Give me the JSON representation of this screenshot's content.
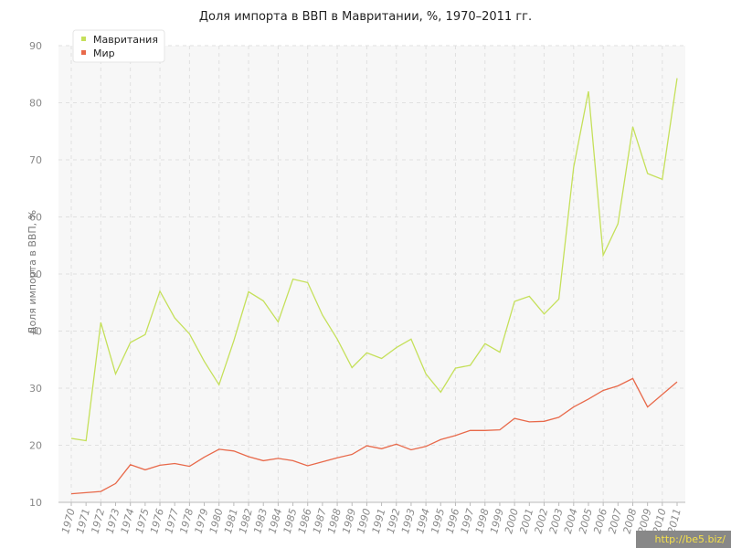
{
  "chart_data": {
    "type": "line",
    "title": "Доля импорта в ВВП в Мавритании, %, 1970–2011 гг.",
    "xlabel": "",
    "ylabel": "Доля импорта в ВВП, %",
    "ylim": [
      10,
      90
    ],
    "yticks": [
      10,
      20,
      30,
      40,
      50,
      60,
      70,
      80,
      90
    ],
    "grid": true,
    "legend_position": "top-left",
    "x": [
      1970,
      1971,
      1972,
      1973,
      1974,
      1975,
      1976,
      1977,
      1978,
      1979,
      1980,
      1981,
      1982,
      1983,
      1984,
      1985,
      1986,
      1987,
      1988,
      1989,
      1990,
      1991,
      1992,
      1993,
      1994,
      1995,
      1996,
      1997,
      1998,
      1999,
      2000,
      2001,
      2002,
      2003,
      2004,
      2005,
      2006,
      2007,
      2008,
      2009,
      2010,
      2011
    ],
    "series": [
      {
        "name": "Мавритания",
        "color": "#c5e05a",
        "values": [
          21.2,
          20.8,
          41.5,
          32.5,
          38.0,
          39.4,
          47.0,
          42.3,
          39.5,
          34.7,
          30.6,
          38.3,
          46.9,
          45.3,
          41.6,
          49.1,
          48.5,
          42.8,
          38.6,
          33.6,
          36.2,
          35.2,
          37.1,
          38.6,
          32.5,
          29.3,
          33.5,
          34.0,
          37.8,
          36.3,
          45.2,
          46.1,
          43.0,
          45.6,
          68.7,
          82.0,
          53.3,
          58.8,
          75.8,
          67.6,
          66.6,
          84.3
        ]
      },
      {
        "name": "Мир",
        "color": "#e8694a",
        "values": [
          11.5,
          11.7,
          11.9,
          13.3,
          16.6,
          15.7,
          16.5,
          16.8,
          16.3,
          17.9,
          19.3,
          19.0,
          18.0,
          17.3,
          17.7,
          17.3,
          16.4,
          17.1,
          17.8,
          18.4,
          19.9,
          19.4,
          20.2,
          19.2,
          19.8,
          21.0,
          21.7,
          22.6,
          22.6,
          22.7,
          24.7,
          24.1,
          24.2,
          24.9,
          26.7,
          28.1,
          29.6,
          30.4,
          31.7,
          26.7,
          28.9,
          31.1
        ]
      }
    ]
  },
  "watermark": "http://be5.biz/"
}
